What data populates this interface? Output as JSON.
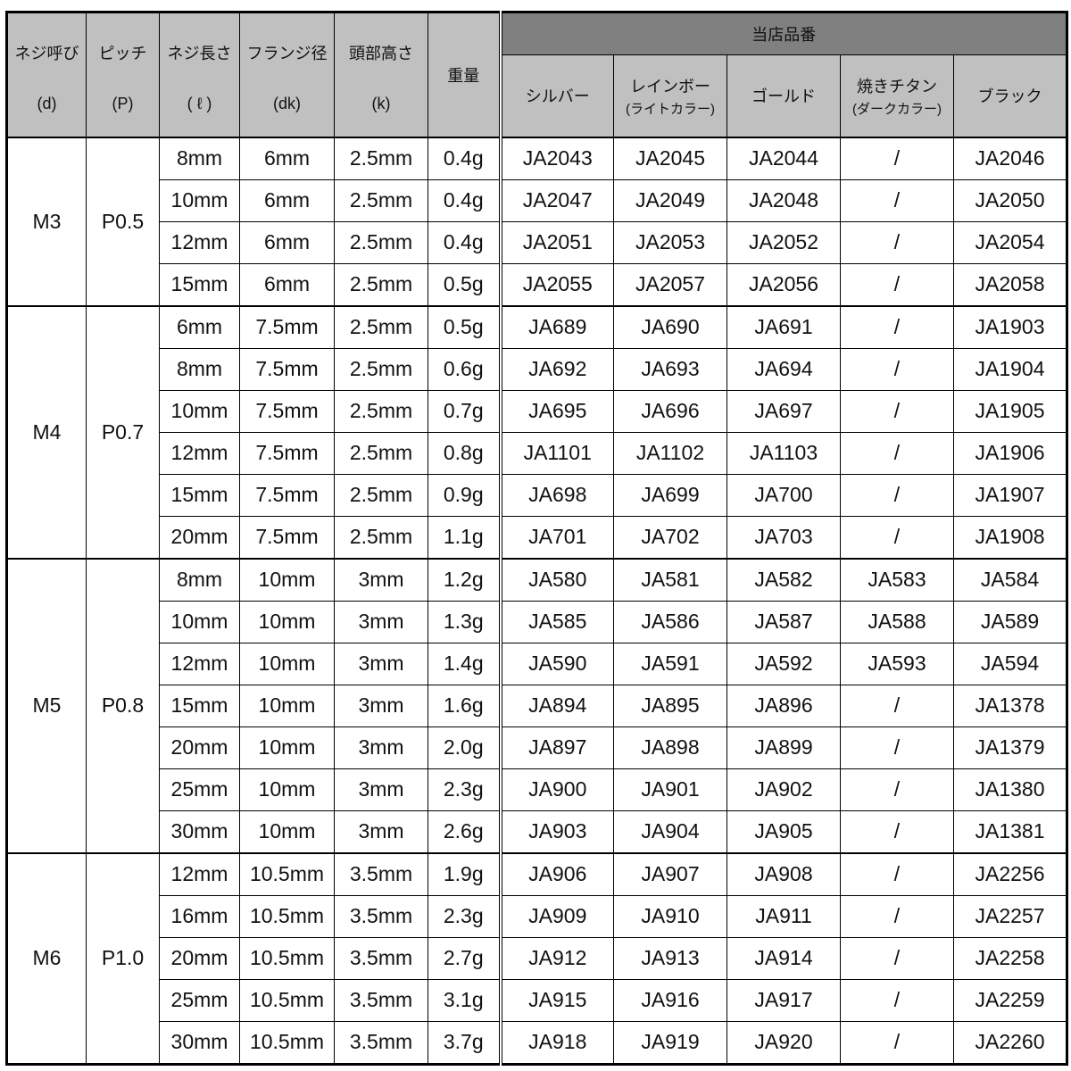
{
  "header": {
    "specs": [
      {
        "name": "ネジ呼び",
        "symbol": "(d)"
      },
      {
        "name": "ピッチ",
        "symbol": "(P)"
      },
      {
        "name": "ネジ長さ",
        "symbol": "( ℓ )"
      },
      {
        "name": "フランジ径",
        "symbol": "(dk)"
      },
      {
        "name": "頭部高さ",
        "symbol": "(k)"
      }
    ],
    "weight": "重量",
    "group": "当店品番",
    "colors": [
      {
        "name": "シルバー",
        "sub": ""
      },
      {
        "name": "レインボー",
        "sub": "(ライトカラー)"
      },
      {
        "name": "ゴールド",
        "sub": ""
      },
      {
        "name": "焼きチタン",
        "sub": "(ダークカラー)"
      },
      {
        "name": "ブラック",
        "sub": ""
      }
    ]
  },
  "groups": [
    {
      "size": "M3",
      "pitch": "P0.5",
      "rows": [
        [
          "8mm",
          "6mm",
          "2.5mm",
          "0.4g",
          "JA2043",
          "JA2045",
          "JA2044",
          "/",
          "JA2046"
        ],
        [
          "10mm",
          "6mm",
          "2.5mm",
          "0.4g",
          "JA2047",
          "JA2049",
          "JA2048",
          "/",
          "JA2050"
        ],
        [
          "12mm",
          "6mm",
          "2.5mm",
          "0.4g",
          "JA2051",
          "JA2053",
          "JA2052",
          "/",
          "JA2054"
        ],
        [
          "15mm",
          "6mm",
          "2.5mm",
          "0.5g",
          "JA2055",
          "JA2057",
          "JA2056",
          "/",
          "JA2058"
        ]
      ]
    },
    {
      "size": "M4",
      "pitch": "P0.7",
      "rows": [
        [
          "6mm",
          "7.5mm",
          "2.5mm",
          "0.5g",
          "JA689",
          "JA690",
          "JA691",
          "/",
          "JA1903"
        ],
        [
          "8mm",
          "7.5mm",
          "2.5mm",
          "0.6g",
          "JA692",
          "JA693",
          "JA694",
          "/",
          "JA1904"
        ],
        [
          "10mm",
          "7.5mm",
          "2.5mm",
          "0.7g",
          "JA695",
          "JA696",
          "JA697",
          "/",
          "JA1905"
        ],
        [
          "12mm",
          "7.5mm",
          "2.5mm",
          "0.8g",
          "JA1101",
          "JA1102",
          "JA1103",
          "/",
          "JA1906"
        ],
        [
          "15mm",
          "7.5mm",
          "2.5mm",
          "0.9g",
          "JA698",
          "JA699",
          "JA700",
          "/",
          "JA1907"
        ],
        [
          "20mm",
          "7.5mm",
          "2.5mm",
          "1.1g",
          "JA701",
          "JA702",
          "JA703",
          "/",
          "JA1908"
        ]
      ]
    },
    {
      "size": "M5",
      "pitch": "P0.8",
      "rows": [
        [
          "8mm",
          "10mm",
          "3mm",
          "1.2g",
          "JA580",
          "JA581",
          "JA582",
          "JA583",
          "JA584"
        ],
        [
          "10mm",
          "10mm",
          "3mm",
          "1.3g",
          "JA585",
          "JA586",
          "JA587",
          "JA588",
          "JA589"
        ],
        [
          "12mm",
          "10mm",
          "3mm",
          "1.4g",
          "JA590",
          "JA591",
          "JA592",
          "JA593",
          "JA594"
        ],
        [
          "15mm",
          "10mm",
          "3mm",
          "1.6g",
          "JA894",
          "JA895",
          "JA896",
          "/",
          "JA1378"
        ],
        [
          "20mm",
          "10mm",
          "3mm",
          "2.0g",
          "JA897",
          "JA898",
          "JA899",
          "/",
          "JA1379"
        ],
        [
          "25mm",
          "10mm",
          "3mm",
          "2.3g",
          "JA900",
          "JA901",
          "JA902",
          "/",
          "JA1380"
        ],
        [
          "30mm",
          "10mm",
          "3mm",
          "2.6g",
          "JA903",
          "JA904",
          "JA905",
          "/",
          "JA1381"
        ]
      ]
    },
    {
      "size": "M6",
      "pitch": "P1.0",
      "rows": [
        [
          "12mm",
          "10.5mm",
          "3.5mm",
          "1.9g",
          "JA906",
          "JA907",
          "JA908",
          "/",
          "JA2256"
        ],
        [
          "16mm",
          "10.5mm",
          "3.5mm",
          "2.3g",
          "JA909",
          "JA910",
          "JA911",
          "/",
          "JA2257"
        ],
        [
          "20mm",
          "10.5mm",
          "3.5mm",
          "2.7g",
          "JA912",
          "JA913",
          "JA914",
          "/",
          "JA2258"
        ],
        [
          "25mm",
          "10.5mm",
          "3.5mm",
          "3.1g",
          "JA915",
          "JA916",
          "JA917",
          "/",
          "JA2259"
        ],
        [
          "30mm",
          "10.5mm",
          "3.5mm",
          "3.7g",
          "JA918",
          "JA919",
          "JA920",
          "/",
          "JA2260"
        ]
      ]
    }
  ]
}
